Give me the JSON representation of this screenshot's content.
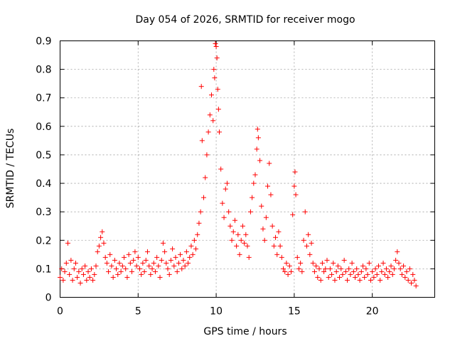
{
  "chart_data": {
    "type": "scatter",
    "title": "Day 054 of 2026, SRMTID for receiver mogo",
    "xlabel": "GPS time / hours",
    "ylabel": "SRMTID / TECUs",
    "xlim": [
      0,
      24
    ],
    "ylim": [
      0,
      0.9
    ],
    "xticks": [
      0,
      5,
      10,
      15,
      20
    ],
    "xtick_labels": [
      "0",
      "5",
      "10",
      "15",
      "20"
    ],
    "yticks": [
      0,
      0.1,
      0.2,
      0.3,
      0.4,
      0.5,
      0.6,
      0.7,
      0.8,
      0.9
    ],
    "ytick_labels": [
      "0",
      "0.1",
      "0.2",
      "0.3",
      "0.4",
      "0.5",
      "0.6",
      "0.7",
      "0.8",
      "0.9"
    ],
    "grid": true,
    "marker": "+",
    "color": "#ff0000",
    "series": [
      {
        "name": "SRMTID",
        "points": [
          [
            0.0,
            0.07
          ],
          [
            0.1,
            0.1
          ],
          [
            0.2,
            0.06
          ],
          [
            0.3,
            0.09
          ],
          [
            0.4,
            0.12
          ],
          [
            0.5,
            0.19
          ],
          [
            0.6,
            0.08
          ],
          [
            0.7,
            0.13
          ],
          [
            0.8,
            0.06
          ],
          [
            0.9,
            0.1
          ],
          [
            1.0,
            0.12
          ],
          [
            1.1,
            0.07
          ],
          [
            1.2,
            0.09
          ],
          [
            1.3,
            0.05
          ],
          [
            1.4,
            0.1
          ],
          [
            1.5,
            0.08
          ],
          [
            1.6,
            0.11
          ],
          [
            1.7,
            0.06
          ],
          [
            1.8,
            0.09
          ],
          [
            1.9,
            0.07
          ],
          [
            2.0,
            0.1
          ],
          [
            2.1,
            0.06
          ],
          [
            2.2,
            0.08
          ],
          [
            2.3,
            0.11
          ],
          [
            2.4,
            0.16
          ],
          [
            2.5,
            0.18
          ],
          [
            2.6,
            0.21
          ],
          [
            2.7,
            0.23
          ],
          [
            2.8,
            0.19
          ],
          [
            2.9,
            0.14
          ],
          [
            3.0,
            0.12
          ],
          [
            3.1,
            0.09
          ],
          [
            3.2,
            0.15
          ],
          [
            3.3,
            0.11
          ],
          [
            3.4,
            0.07
          ],
          [
            3.5,
            0.13
          ],
          [
            3.6,
            0.1
          ],
          [
            3.7,
            0.08
          ],
          [
            3.8,
            0.12
          ],
          [
            3.9,
            0.09
          ],
          [
            4.0,
            0.11
          ],
          [
            4.1,
            0.14
          ],
          [
            4.2,
            0.1
          ],
          [
            4.3,
            0.07
          ],
          [
            4.4,
            0.15
          ],
          [
            4.5,
            0.12
          ],
          [
            4.6,
            0.09
          ],
          [
            4.7,
            0.13
          ],
          [
            4.8,
            0.16
          ],
          [
            4.9,
            0.11
          ],
          [
            5.0,
            0.14
          ],
          [
            5.1,
            0.1
          ],
          [
            5.2,
            0.08
          ],
          [
            5.3,
            0.12
          ],
          [
            5.4,
            0.09
          ],
          [
            5.5,
            0.13
          ],
          [
            5.6,
            0.16
          ],
          [
            5.7,
            0.11
          ],
          [
            5.8,
            0.08
          ],
          [
            5.9,
            0.1
          ],
          [
            6.0,
            0.12
          ],
          [
            6.1,
            0.09
          ],
          [
            6.2,
            0.14
          ],
          [
            6.3,
            0.11
          ],
          [
            6.4,
            0.07
          ],
          [
            6.5,
            0.13
          ],
          [
            6.6,
            0.19
          ],
          [
            6.7,
            0.16
          ],
          [
            6.8,
            0.12
          ],
          [
            6.9,
            0.1
          ],
          [
            7.0,
            0.08
          ],
          [
            7.1,
            0.13
          ],
          [
            7.2,
            0.17
          ],
          [
            7.3,
            0.11
          ],
          [
            7.4,
            0.14
          ],
          [
            7.5,
            0.09
          ],
          [
            7.6,
            0.12
          ],
          [
            7.7,
            0.15
          ],
          [
            7.8,
            0.1
          ],
          [
            7.9,
            0.13
          ],
          [
            8.0,
            0.11
          ],
          [
            8.1,
            0.16
          ],
          [
            8.2,
            0.12
          ],
          [
            8.3,
            0.14
          ],
          [
            8.4,
            0.18
          ],
          [
            8.5,
            0.15
          ],
          [
            8.6,
            0.2
          ],
          [
            8.7,
            0.17
          ],
          [
            8.8,
            0.22
          ],
          [
            8.9,
            0.26
          ],
          [
            9.0,
            0.3
          ],
          [
            9.05,
            0.74
          ],
          [
            9.1,
            0.55
          ],
          [
            9.2,
            0.35
          ],
          [
            9.3,
            0.42
          ],
          [
            9.4,
            0.5
          ],
          [
            9.5,
            0.58
          ],
          [
            9.6,
            0.64
          ],
          [
            9.7,
            0.71
          ],
          [
            9.8,
            0.62
          ],
          [
            9.85,
            0.8
          ],
          [
            9.9,
            0.77
          ],
          [
            9.95,
            0.89
          ],
          [
            10.0,
            0.88
          ],
          [
            10.05,
            0.84
          ],
          [
            10.1,
            0.73
          ],
          [
            10.15,
            0.66
          ],
          [
            10.2,
            0.58
          ],
          [
            10.3,
            0.45
          ],
          [
            10.4,
            0.33
          ],
          [
            10.5,
            0.28
          ],
          [
            10.6,
            0.38
          ],
          [
            10.7,
            0.4
          ],
          [
            10.8,
            0.3
          ],
          [
            10.9,
            0.25
          ],
          [
            11.0,
            0.2
          ],
          [
            11.1,
            0.23
          ],
          [
            11.2,
            0.27
          ],
          [
            11.3,
            0.18
          ],
          [
            11.4,
            0.22
          ],
          [
            11.5,
            0.15
          ],
          [
            11.6,
            0.2
          ],
          [
            11.7,
            0.25
          ],
          [
            11.8,
            0.19
          ],
          [
            11.9,
            0.22
          ],
          [
            12.0,
            0.18
          ],
          [
            12.1,
            0.14
          ],
          [
            12.2,
            0.3
          ],
          [
            12.3,
            0.35
          ],
          [
            12.4,
            0.4
          ],
          [
            12.5,
            0.43
          ],
          [
            12.6,
            0.52
          ],
          [
            12.65,
            0.59
          ],
          [
            12.7,
            0.56
          ],
          [
            12.8,
            0.48
          ],
          [
            12.9,
            0.32
          ],
          [
            13.0,
            0.24
          ],
          [
            13.1,
            0.2
          ],
          [
            13.2,
            0.28
          ],
          [
            13.3,
            0.39
          ],
          [
            13.4,
            0.47
          ],
          [
            13.5,
            0.36
          ],
          [
            13.6,
            0.25
          ],
          [
            13.7,
            0.18
          ],
          [
            13.8,
            0.21
          ],
          [
            13.9,
            0.15
          ],
          [
            14.0,
            0.23
          ],
          [
            14.1,
            0.18
          ],
          [
            14.2,
            0.14
          ],
          [
            14.3,
            0.1
          ],
          [
            14.4,
            0.09
          ],
          [
            14.5,
            0.12
          ],
          [
            14.6,
            0.08
          ],
          [
            14.7,
            0.11
          ],
          [
            14.8,
            0.09
          ],
          [
            14.9,
            0.29
          ],
          [
            15.0,
            0.39
          ],
          [
            15.05,
            0.44
          ],
          [
            15.1,
            0.36
          ],
          [
            15.2,
            0.14
          ],
          [
            15.3,
            0.1
          ],
          [
            15.4,
            0.12
          ],
          [
            15.5,
            0.09
          ],
          [
            15.6,
            0.2
          ],
          [
            15.7,
            0.3
          ],
          [
            15.8,
            0.18
          ],
          [
            15.9,
            0.22
          ],
          [
            16.0,
            0.15
          ],
          [
            16.1,
            0.19
          ],
          [
            16.2,
            0.12
          ],
          [
            16.3,
            0.09
          ],
          [
            16.4,
            0.11
          ],
          [
            16.5,
            0.07
          ],
          [
            16.6,
            0.1
          ],
          [
            16.7,
            0.06
          ],
          [
            16.8,
            0.12
          ],
          [
            16.9,
            0.09
          ],
          [
            17.0,
            0.1
          ],
          [
            17.1,
            0.13
          ],
          [
            17.2,
            0.07
          ],
          [
            17.3,
            0.1
          ],
          [
            17.4,
            0.08
          ],
          [
            17.5,
            0.12
          ],
          [
            17.6,
            0.06
          ],
          [
            17.7,
            0.09
          ],
          [
            17.8,
            0.11
          ],
          [
            17.9,
            0.07
          ],
          [
            18.0,
            0.1
          ],
          [
            18.1,
            0.08
          ],
          [
            18.2,
            0.13
          ],
          [
            18.3,
            0.09
          ],
          [
            18.4,
            0.06
          ],
          [
            18.5,
            0.1
          ],
          [
            18.6,
            0.08
          ],
          [
            18.7,
            0.12
          ],
          [
            18.8,
            0.09
          ],
          [
            18.9,
            0.07
          ],
          [
            19.0,
            0.1
          ],
          [
            19.1,
            0.08
          ],
          [
            19.2,
            0.06
          ],
          [
            19.3,
            0.09
          ],
          [
            19.4,
            0.11
          ],
          [
            19.5,
            0.07
          ],
          [
            19.6,
            0.1
          ],
          [
            19.7,
            0.08
          ],
          [
            19.8,
            0.12
          ],
          [
            19.9,
            0.06
          ],
          [
            20.0,
            0.09
          ],
          [
            20.1,
            0.07
          ],
          [
            20.2,
            0.1
          ],
          [
            20.3,
            0.08
          ],
          [
            20.4,
            0.11
          ],
          [
            20.5,
            0.06
          ],
          [
            20.6,
            0.09
          ],
          [
            20.7,
            0.12
          ],
          [
            20.8,
            0.08
          ],
          [
            20.9,
            0.1
          ],
          [
            21.0,
            0.07
          ],
          [
            21.1,
            0.09
          ],
          [
            21.2,
            0.11
          ],
          [
            21.3,
            0.08
          ],
          [
            21.4,
            0.1
          ],
          [
            21.5,
            0.13
          ],
          [
            21.6,
            0.16
          ],
          [
            21.7,
            0.12
          ],
          [
            21.8,
            0.1
          ],
          [
            21.9,
            0.08
          ],
          [
            22.0,
            0.11
          ],
          [
            22.1,
            0.07
          ],
          [
            22.2,
            0.09
          ],
          [
            22.3,
            0.06
          ],
          [
            22.4,
            0.1
          ],
          [
            22.5,
            0.05
          ],
          [
            22.6,
            0.08
          ],
          [
            22.7,
            0.06
          ],
          [
            22.8,
            0.04
          ]
        ]
      }
    ]
  }
}
